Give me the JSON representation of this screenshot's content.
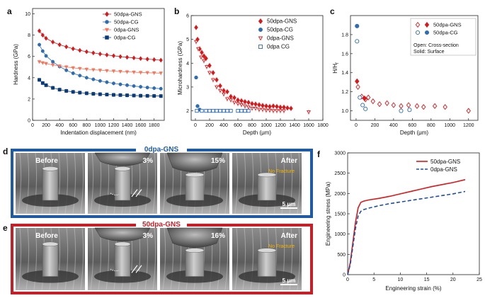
{
  "chart_data": [
    {
      "id": "a",
      "type": "scatter",
      "panel_label": "a",
      "xlabel": "Indentation displacement (nm)",
      "ylabel": "Hardness (GPa)",
      "xlim": [
        0,
        1950
      ],
      "ylim": [
        0,
        10.5
      ],
      "xticks": [
        "0",
        "200",
        "400",
        "600",
        "800",
        "1000",
        "1200",
        "1400",
        "1600",
        "1800"
      ],
      "yticks": [
        "0",
        "2",
        "4",
        "6",
        "8",
        "10"
      ],
      "series": [
        {
          "name": "50dpa-GNS",
          "color": "#d7191c",
          "marker": "diamond",
          "x": [
            100,
            150,
            200,
            300,
            400,
            500,
            600,
            700,
            800,
            900,
            1000,
            1100,
            1200,
            1300,
            1400,
            1500,
            1600,
            1700,
            1800,
            1900
          ],
          "y": [
            8.4,
            8.0,
            7.7,
            7.35,
            7.1,
            6.9,
            6.72,
            6.57,
            6.44,
            6.33,
            6.23,
            6.14,
            6.06,
            5.98,
            5.92,
            5.86,
            5.8,
            5.75,
            5.7,
            5.65
          ]
        },
        {
          "name": "50dpa-CG",
          "color": "#2f6db3",
          "marker": "circle",
          "x": [
            100,
            150,
            200,
            300,
            400,
            500,
            600,
            700,
            800,
            900,
            1000,
            1100,
            1200,
            1300,
            1400,
            1500,
            1600,
            1700,
            1800,
            1900
          ],
          "y": [
            7.1,
            6.5,
            6.05,
            5.5,
            5.05,
            4.7,
            4.42,
            4.2,
            4.0,
            3.85,
            3.7,
            3.58,
            3.47,
            3.38,
            3.3,
            3.22,
            3.15,
            3.08,
            3.02,
            2.97
          ]
        },
        {
          "name": "0dpa-GNS",
          "color": "#f4765c",
          "marker": "triangle-down",
          "x": [
            100,
            150,
            200,
            300,
            400,
            500,
            600,
            700,
            800,
            900,
            1000,
            1100,
            1200,
            1300,
            1400,
            1500,
            1600,
            1700,
            1800,
            1900
          ],
          "y": [
            5.5,
            5.4,
            5.33,
            5.2,
            5.1,
            5.01,
            4.93,
            4.86,
            4.8,
            4.75,
            4.7,
            4.66,
            4.62,
            4.58,
            4.55,
            4.52,
            4.49,
            4.47,
            4.45,
            4.43
          ]
        },
        {
          "name": "0dpa-CG",
          "color": "#0b3a78",
          "marker": "square",
          "x": [
            100,
            150,
            200,
            300,
            400,
            500,
            600,
            700,
            800,
            900,
            1000,
            1100,
            1200,
            1300,
            1400,
            1500,
            1600,
            1700,
            1800,
            1900
          ],
          "y": [
            3.8,
            3.5,
            3.3,
            3.05,
            2.88,
            2.76,
            2.67,
            2.6,
            2.54,
            2.49,
            2.45,
            2.42,
            2.39,
            2.37,
            2.35,
            2.33,
            2.31,
            2.3,
            2.29,
            2.28
          ]
        }
      ]
    },
    {
      "id": "b",
      "type": "scatter",
      "panel_label": "b",
      "xlabel": "Depth (μm)",
      "ylabel": "Microhardness (GPa)",
      "xlim": [
        -60,
        1800
      ],
      "ylim": [
        1.6,
        6.0
      ],
      "xticks": [
        "0",
        "200",
        "400",
        "600",
        "800",
        "1000",
        "1200",
        "1400",
        "1600",
        "1800"
      ],
      "yticks": [
        "2",
        "3",
        "4",
        "5",
        "6"
      ],
      "series": [
        {
          "name": "50dpa-GNS",
          "color": "#d7191c",
          "marker": "diamond",
          "filled": true,
          "x": [
            10,
            30,
            60,
            90,
            120,
            150,
            200,
            250,
            300,
            350,
            400,
            450,
            500,
            550,
            600,
            650,
            700,
            750,
            800,
            850,
            900,
            950,
            1000,
            1050,
            1100,
            1150,
            1200,
            1250,
            1300,
            1350
          ],
          "y": [
            5.5,
            5.0,
            4.6,
            4.45,
            4.3,
            4.2,
            3.9,
            3.6,
            3.3,
            3.05,
            2.85,
            2.8,
            2.6,
            2.55,
            2.45,
            2.42,
            2.38,
            2.35,
            2.3,
            2.28,
            2.25,
            2.22,
            2.2,
            2.18,
            2.2,
            2.18,
            2.15,
            2.15,
            2.12,
            2.1
          ]
        },
        {
          "name": "50dpa-CG",
          "color": "#2f6db3",
          "marker": "circle",
          "filled": true,
          "x": [
            10,
            30,
            60,
            500,
            700
          ],
          "y": [
            3.4,
            2.2,
            2.05,
            2.0,
            2.0
          ]
        },
        {
          "name": "0dpa-GNS",
          "color": "#d7191c",
          "marker": "triangle-down",
          "filled": false,
          "x": [
            10,
            40,
            80,
            120,
            160,
            200,
            250,
            300,
            350,
            400,
            450,
            500,
            550,
            600,
            650,
            700,
            750,
            800,
            850,
            900,
            950,
            1000,
            1050,
            1100,
            1150,
            1200,
            1250,
            1600
          ],
          "y": [
            4.9,
            4.6,
            4.25,
            4.1,
            3.85,
            3.6,
            3.3,
            3.0,
            2.85,
            2.7,
            2.5,
            2.45,
            2.35,
            2.3,
            2.25,
            2.2,
            2.15,
            2.1,
            2.1,
            2.05,
            2.05,
            2.02,
            2.02,
            2.0,
            2.0,
            2.0,
            2.0,
            1.95
          ]
        },
        {
          "name": "0dpa CG",
          "color": "#2f6db3",
          "marker": "square",
          "filled": false,
          "x": [
            20,
            90,
            150,
            200,
            250,
            300,
            350,
            400,
            450,
            500,
            600,
            650,
            700,
            750
          ],
          "y": [
            2.0,
            2.0,
            2.0,
            2.0,
            2.0,
            2.0,
            2.0,
            2.0,
            2.0,
            2.0,
            2.0,
            2.0,
            2.0,
            2.0
          ]
        }
      ]
    },
    {
      "id": "c",
      "type": "scatter",
      "panel_label": "c",
      "xlabel": "Depth (μm)",
      "ylabel": "H/H",
      "ylabel_sub": "f",
      "xlim": [
        -60,
        1300
      ],
      "ylim": [
        0.9,
        2.0
      ],
      "xticks": [
        "0",
        "200",
        "400",
        "600",
        "800",
        "1000",
        "1200"
      ],
      "yticks": [
        "1.0",
        "1.2",
        "1.4",
        "1.6",
        "1.8"
      ],
      "legend_notes": [
        "Open: Cross-section",
        "Solid: Surface"
      ],
      "series": [
        {
          "name": "50dpa-GNS (open)",
          "color": "#d7191c",
          "marker": "diamond",
          "filled": false,
          "x": [
            20,
            60,
            100,
            130,
            180,
            250,
            330,
            400,
            480,
            560,
            650,
            720,
            840,
            950,
            1200
          ],
          "y": [
            1.25,
            1.15,
            1.12,
            1.14,
            1.1,
            1.07,
            1.08,
            1.06,
            1.05,
            1.06,
            1.05,
            1.04,
            1.05,
            1.04,
            1.0
          ]
        },
        {
          "name": "50dpa-GNS (solid)",
          "color": "#d7191c",
          "marker": "diamond",
          "filled": true,
          "x": [
            10,
            90
          ],
          "y": [
            1.31,
            1.13
          ]
        },
        {
          "name": "50dpa-CG (open)",
          "color": "#2f6db3",
          "marker": "circle",
          "filled": false,
          "x": [
            10,
            40,
            70,
            100,
            480,
            570
          ],
          "y": [
            1.73,
            1.14,
            1.06,
            1.02,
            1.0,
            1.01
          ]
        },
        {
          "name": "50dpa-CG (solid)",
          "color": "#2f6db3",
          "marker": "circle",
          "filled": true,
          "x": [
            10
          ],
          "y": [
            1.89
          ]
        }
      ],
      "legend": [
        {
          "label": "50dpa-GNS",
          "color": "#d7191c",
          "marker": "diamond"
        },
        {
          "label": "50dpa-CG",
          "color": "#2f6db3",
          "marker": "circle"
        }
      ]
    },
    {
      "id": "f",
      "type": "line",
      "panel_label": "f",
      "xlabel": "Engineering strain (%)",
      "ylabel": "Engineering stress (MPa)",
      "xlim": [
        0,
        25
      ],
      "ylim": [
        0,
        3000
      ],
      "xticks": [
        "0",
        "5",
        "10",
        "15",
        "20",
        "25"
      ],
      "yticks": [
        "0",
        "500",
        "1000",
        "1500",
        "2000",
        "2500",
        "3000"
      ],
      "series": [
        {
          "name": "50dpa-GNS",
          "color": "#d7191c",
          "dash": false,
          "x": [
            0,
            0.5,
            1,
            1.5,
            2,
            2.5,
            3,
            4,
            6,
            8,
            10,
            12,
            14,
            16,
            18,
            20,
            22.3
          ],
          "y": [
            0,
            300,
            800,
            1300,
            1650,
            1780,
            1810,
            1840,
            1880,
            1930,
            1990,
            2050,
            2110,
            2170,
            2220,
            2270,
            2340
          ]
        },
        {
          "name": "0dpa-GNS",
          "color": "#1f4e9e",
          "dash": true,
          "x": [
            0,
            0.5,
            1,
            1.5,
            2,
            2.5,
            3,
            4,
            6,
            8,
            10,
            12,
            14,
            16,
            18,
            20,
            22.3
          ],
          "y": [
            0,
            250,
            700,
            1150,
            1450,
            1560,
            1600,
            1640,
            1700,
            1750,
            1790,
            1830,
            1870,
            1910,
            1950,
            1990,
            2050
          ]
        }
      ]
    }
  ],
  "sem_panels": {
    "d": {
      "panel_label": "d",
      "title": "0dpa-GNS",
      "color": "#1f5aa6",
      "frames": [
        "Before",
        "3%",
        "15%",
        "After"
      ],
      "note": "No Fracture",
      "scale_bar": "5 μm"
    },
    "e": {
      "panel_label": "e",
      "title": "50dpa-GNS",
      "color": "#c81e28",
      "frames": [
        "Before",
        "3%",
        "16%",
        "After"
      ],
      "note": "No Fracture",
      "scale_bar": "5 μm"
    }
  }
}
